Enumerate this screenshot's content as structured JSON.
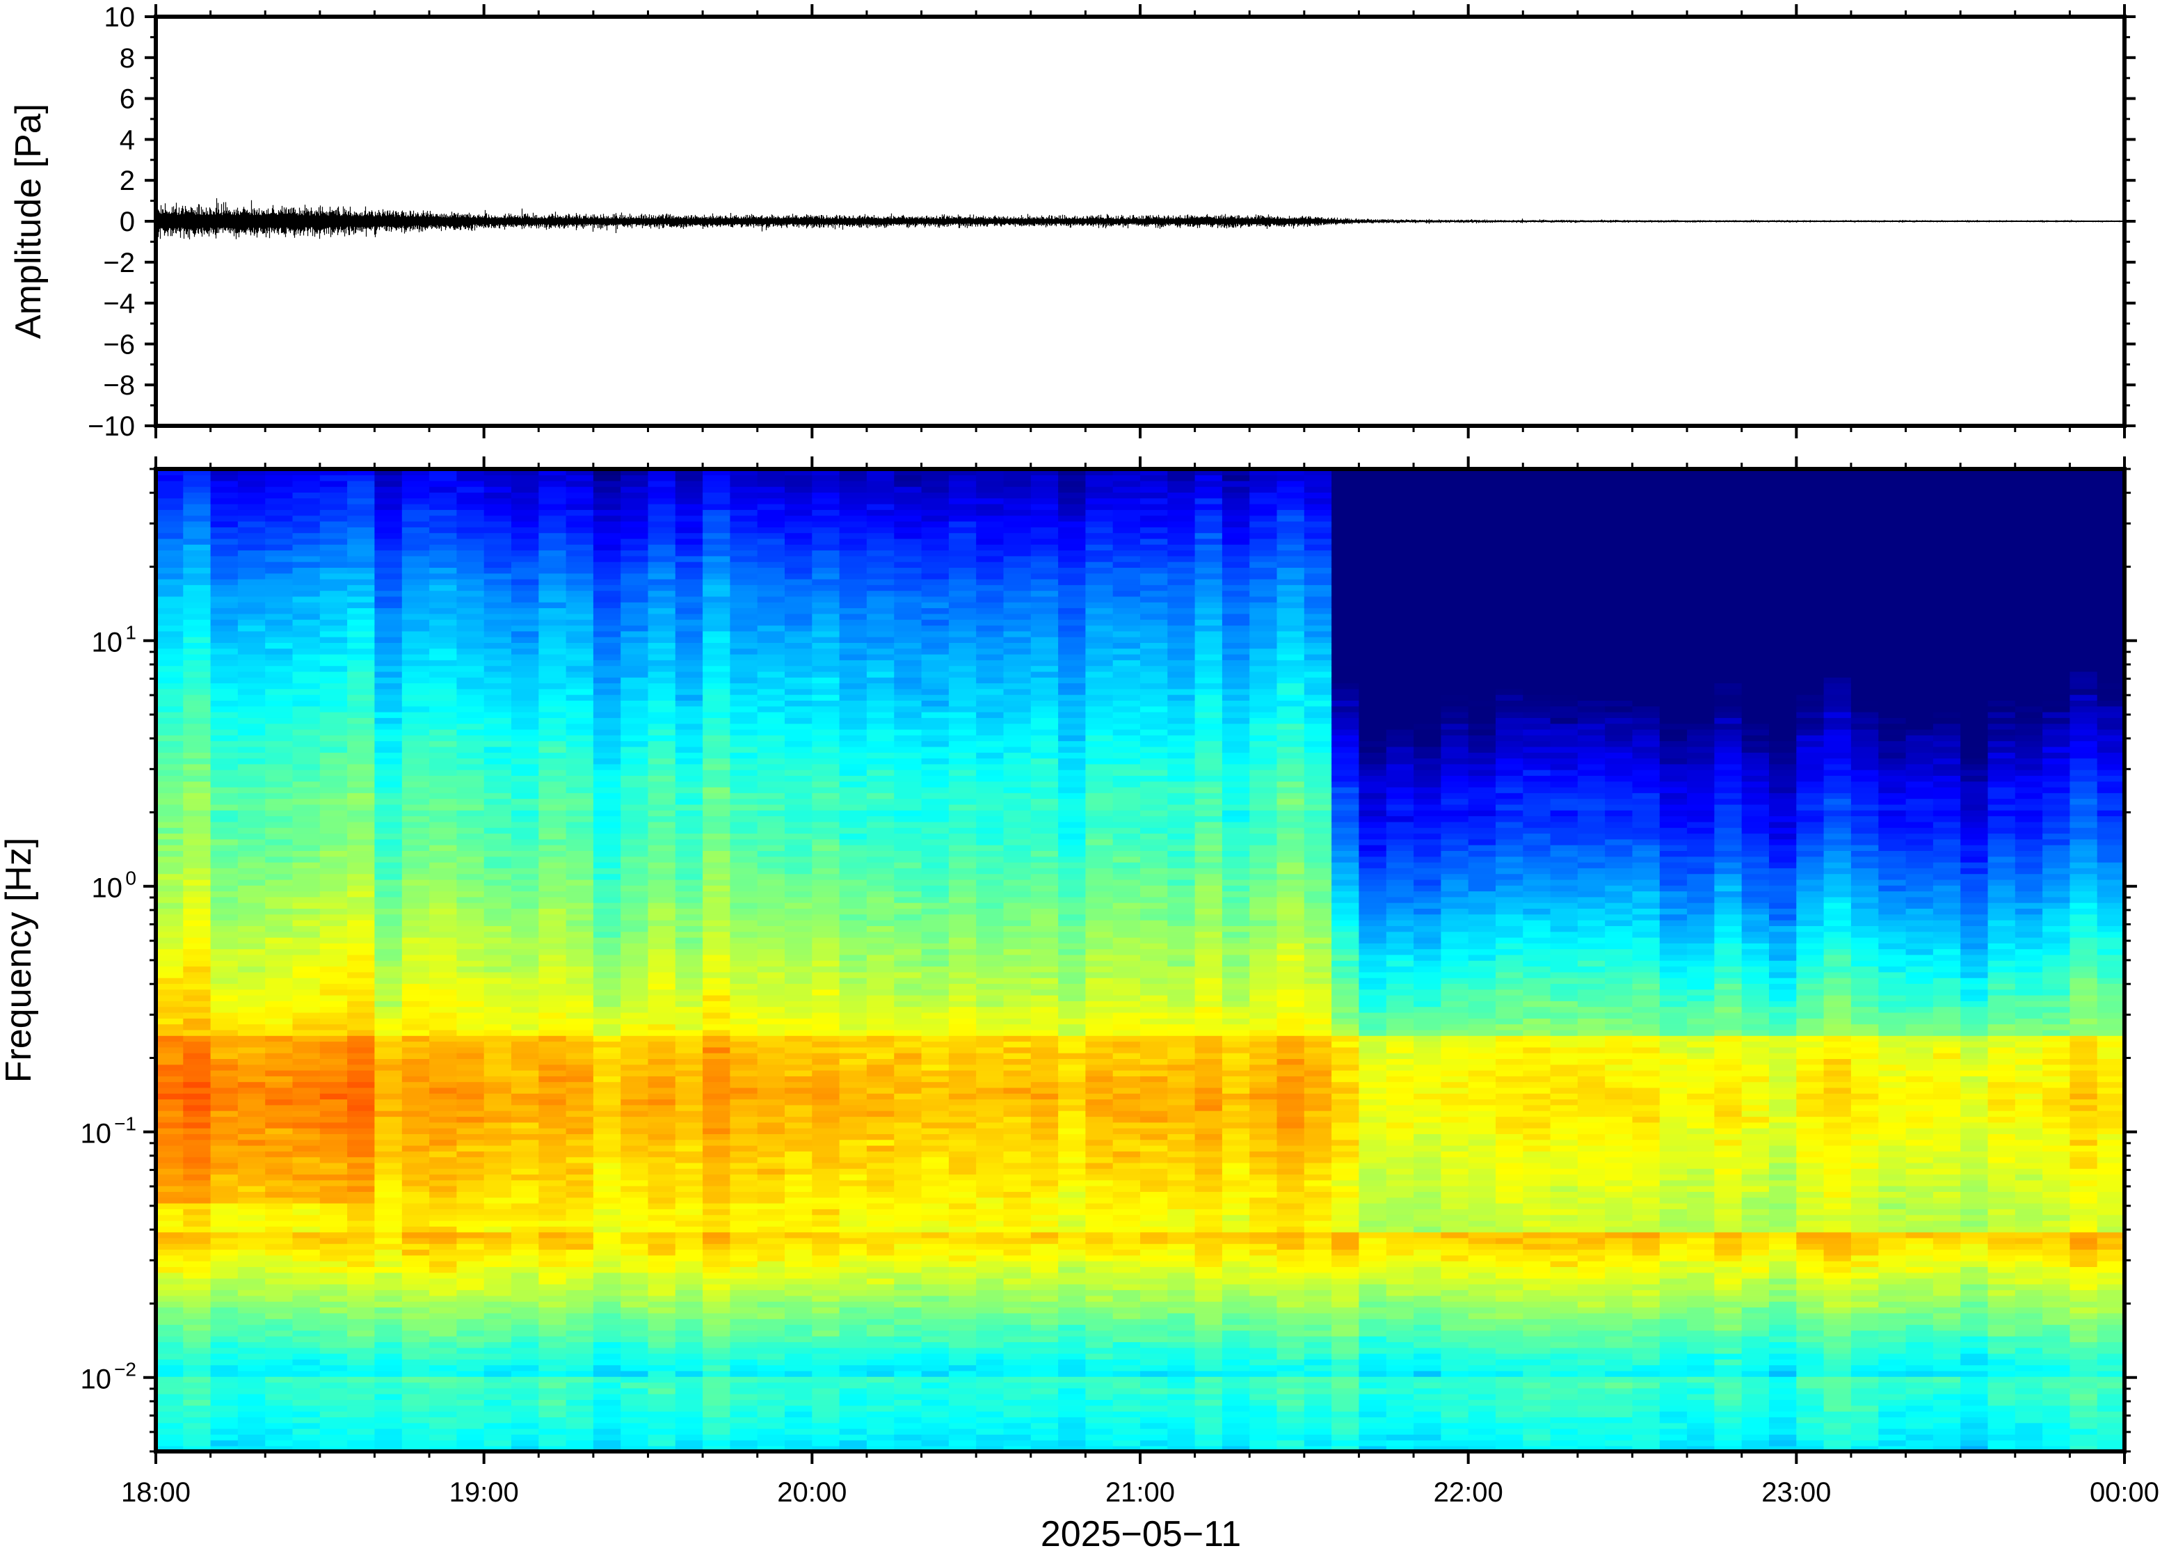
{
  "chart_data": [
    {
      "type": "line",
      "panel": "waveform",
      "title": "",
      "xlabel": "",
      "ylabel": "Amplitude [Pa]",
      "ylim": [
        -10,
        10
      ],
      "yticks": [
        -10,
        -8,
        -6,
        -4,
        -2,
        0,
        2,
        4,
        6,
        8,
        10
      ],
      "ytick_labels": [
        "−10",
        "−8",
        "−6",
        "−4",
        "−2",
        "0",
        "2",
        "4",
        "6",
        "8",
        "10"
      ],
      "x_range": [
        "2025-05-11T18:00",
        "2025-05-12T00:00"
      ],
      "envelope": {
        "time": [
          "18:00",
          "18:30",
          "19:00",
          "19:30",
          "20:00",
          "20:30",
          "21:00",
          "21:15",
          "21:30",
          "21:40",
          "22:00",
          "23:00",
          "00:00"
        ],
        "peak_amplitude_pa": [
          0.9,
          0.8,
          0.4,
          0.35,
          0.35,
          0.3,
          0.3,
          0.35,
          0.3,
          0.12,
          0.08,
          0.06,
          0.05
        ]
      },
      "grid": false,
      "legend": "none"
    },
    {
      "type": "heatmap",
      "panel": "spectrogram",
      "title": "",
      "xlabel": "2025−05−11",
      "ylabel": "Frequency [Hz]",
      "y_scale": "log",
      "ylim": [
        0.005,
        50
      ],
      "yticks": [
        0.01,
        0.1,
        1,
        10
      ],
      "ytick_labels": [
        {
          "base": "10",
          "exp": "−2"
        },
        {
          "base": "10",
          "exp": "−1"
        },
        {
          "base": "10",
          "exp": "0"
        },
        {
          "base": "10",
          "exp": "1"
        }
      ],
      "x_range": [
        "2025-05-11T18:00",
        "2025-05-12T00:00"
      ],
      "xticks": [
        "18:00",
        "19:00",
        "20:00",
        "21:00",
        "22:00",
        "23:00",
        "00:00"
      ],
      "colormap": "jet",
      "colors": {
        "low": "#00007f",
        "mid_low": "#2060f0",
        "mid": "#5fe0d0",
        "mid_high": "#f4f080",
        "high": "#f08040"
      },
      "regime_change_time": "21:37",
      "grid": false,
      "legend": "none"
    }
  ]
}
